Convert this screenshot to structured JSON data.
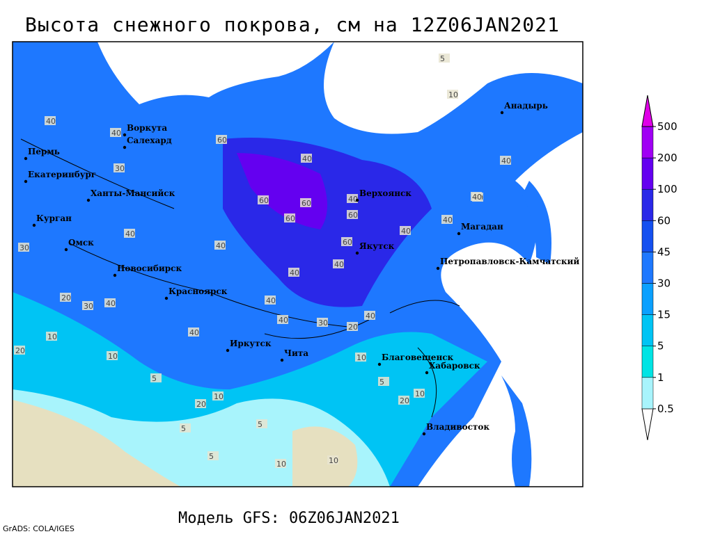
{
  "title": "Высота снежного покрова, см на 12Z06JAN2021",
  "subtitle": "Модель GFS: 06Z06JAN2021",
  "credit": "GrADS: COLA/IGES",
  "cities": [
    "Воркута",
    "Салехард",
    "Пермь",
    "Екатеринбург",
    "Ханты-Мансийск",
    "Курган",
    "Омск",
    "Новосибирск",
    "Красноярск",
    "Иркутск",
    "Чита",
    "Верхоянск",
    "Якутск",
    "Магадан",
    "Анадырь",
    "Петропавловск-Камчатский",
    "Благовещенск",
    "Хабаровск",
    "Владивосток"
  ],
  "contour_labels": [
    30,
    40,
    40,
    30,
    60,
    40,
    60,
    60,
    60,
    40,
    60,
    40,
    40,
    40,
    60,
    40,
    40,
    40,
    40,
    40,
    30,
    20,
    40,
    40,
    30,
    20,
    10,
    20,
    10,
    5,
    10,
    5,
    20,
    5,
    10,
    20,
    10,
    5,
    10,
    5,
    10,
    40,
    40,
    40,
    40,
    10,
    5
  ],
  "legend": {
    "levels": [
      0.5,
      1,
      5,
      15,
      30,
      45,
      60,
      100,
      200,
      500
    ],
    "colors": [
      "#ffffff",
      "#a8f4fc",
      "#00e4e4",
      "#00c4f4",
      "#0aa0ff",
      "#1e78ff",
      "#1450f0",
      "#2a28e8",
      "#6400f0",
      "#a000f4",
      "#e000e8"
    ]
  }
}
